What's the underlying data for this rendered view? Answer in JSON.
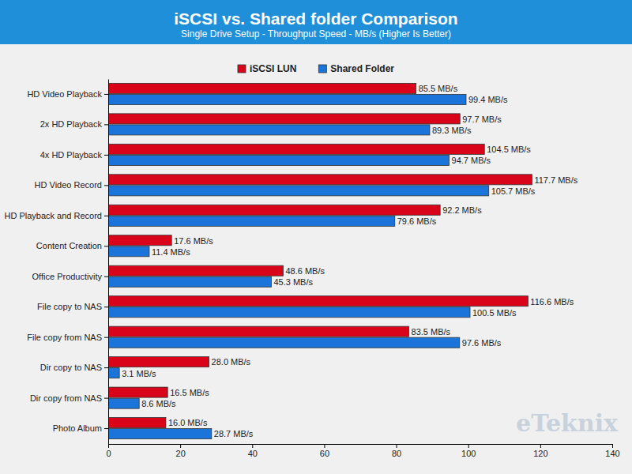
{
  "chart_data": {
    "type": "bar",
    "orientation": "horizontal",
    "title": "iSCSI vs. Shared folder Comparison",
    "subtitle": "Single Drive Setup - Throughput Speed - MB/s (Higher Is Better)",
    "annotations": [
      "eTeknix"
    ],
    "categories": [
      "HD Video Playback",
      "2x HD Playback",
      "4x HD Playback",
      "HD Video Record",
      "HD Playback and Record",
      "Content Creation",
      "Office Productivity",
      "File copy to NAS",
      "File copy from NAS",
      "Dir copy to NAS",
      "Dir copy from NAS",
      "Photo Album"
    ],
    "series": [
      {
        "name": "iSCSI LUN",
        "color": "#d9041a",
        "values": [
          85.5,
          97.7,
          104.5,
          117.7,
          92.2,
          17.6,
          48.6,
          116.6,
          83.5,
          28.0,
          16.5,
          16.0
        ],
        "value_labels": [
          "85.5 MB/s",
          "97.7 MB/s",
          "104.5 MB/s",
          "117.7 MB/s",
          "92.2 MB/s",
          "17.6 MB/s",
          "48.6 MB/s",
          "116.6 MB/s",
          "83.5 MB/s",
          "28.0 MB/s",
          "16.5 MB/s",
          "16.0 MB/s"
        ]
      },
      {
        "name": "Shared Folder",
        "color": "#1a74d9",
        "values": [
          99.4,
          89.3,
          94.7,
          105.7,
          79.6,
          11.4,
          45.3,
          100.5,
          97.6,
          3.1,
          8.6,
          28.7
        ],
        "value_labels": [
          "99.4 MB/s",
          "89.3 MB/s",
          "94.7 MB/s",
          "105.7 MB/s",
          "79.6 MB/s",
          "11.4 MB/s",
          "45.3 MB/s",
          "100.5 MB/s",
          "97.6 MB/s",
          "3.1 MB/s",
          "8.6 MB/s",
          "28.7 MB/s"
        ]
      }
    ],
    "xlim": [
      0,
      140
    ],
    "xticks": [
      0,
      20,
      40,
      60,
      80,
      100,
      120,
      140
    ],
    "grid": false,
    "legend": "top",
    "data_labels": true
  }
}
